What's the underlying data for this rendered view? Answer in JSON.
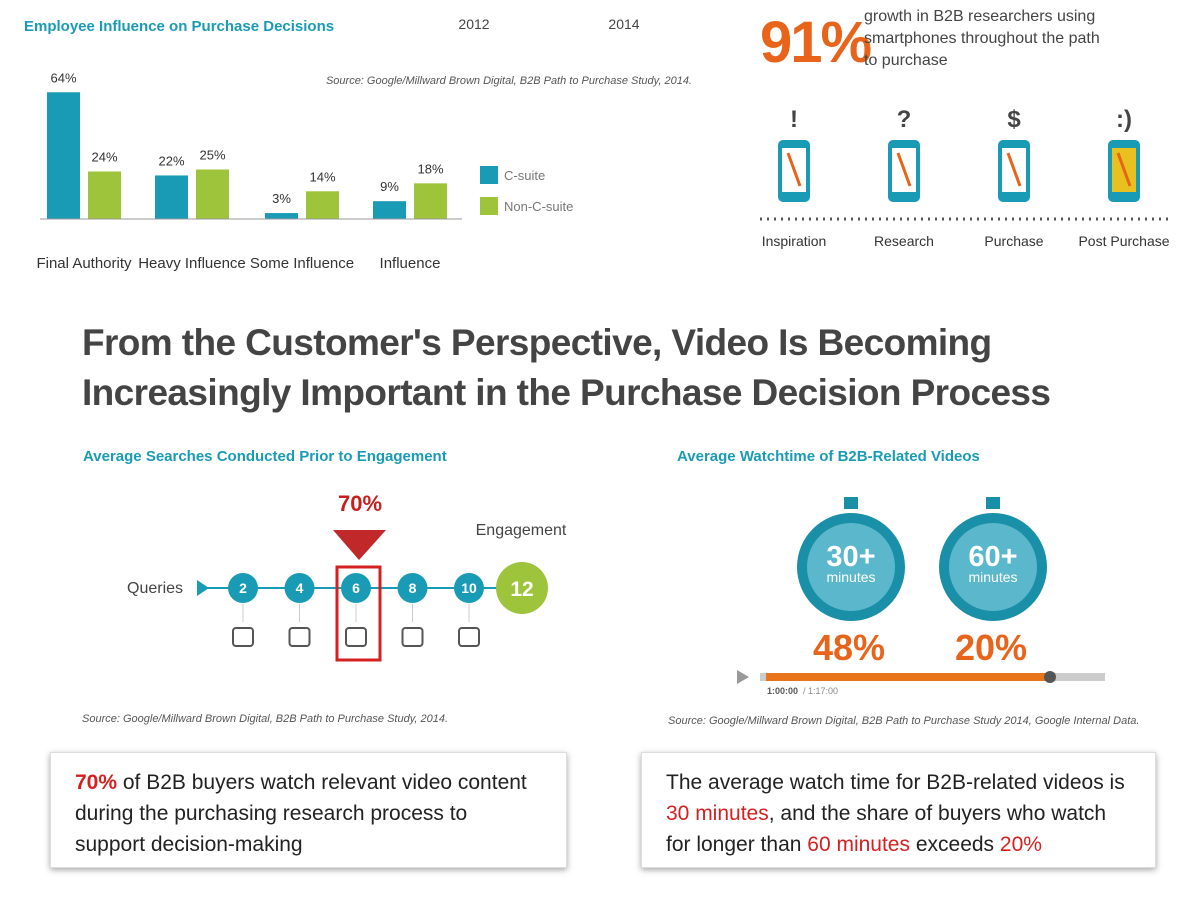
{
  "chart_data": {
    "type": "bar",
    "title": "Employee Influence on Purchase Decisions",
    "annotations": [
      "2012",
      "2014"
    ],
    "source": "Source: Google/Millward Brown Digital, B2B Path to Purchase Study, 2014.",
    "categories": [
      "Final Authority",
      "Heavy Influence",
      "Some Influence",
      "Influence"
    ],
    "series": [
      {
        "name": "C-suite",
        "color": "#1a9bb5",
        "values": [
          64,
          22,
          3,
          9
        ],
        "value_labels": [
          "64%",
          "22%",
          "3%",
          "9%"
        ]
      },
      {
        "name": "Non-C-suite",
        "color": "#9dc43a",
        "values": [
          24,
          25,
          14,
          18
        ],
        "value_labels": [
          "24%",
          "25%",
          "14%",
          "18%"
        ]
      }
    ]
  },
  "smartphone_stat": {
    "value": 91,
    "label": "91%",
    "text": "growth in B2B researchers using smartphones throughout the path to purchase",
    "stages": [
      {
        "symbol": "!",
        "label": "Inspiration"
      },
      {
        "symbol": "?",
        "label": "Research"
      },
      {
        "symbol": "$",
        "label": "Purchase"
      },
      {
        "symbol": ":)",
        "label": "Post Purchase"
      }
    ]
  },
  "headline": "From the Customer's Perspective, Video Is Becoming Increasingly Important in the Purchase Decision Process",
  "searches": {
    "title": "Average Searches Conducted Prior to Engagement",
    "highlight": "70%",
    "start_label": "Queries",
    "steps": [
      2,
      4,
      6,
      8,
      10
    ],
    "end_label": "Engagement",
    "end_value": 12,
    "source": "Source: Google/Millward Brown Digital, B2B Path to Purchase Study, 2014."
  },
  "watchtime": {
    "title": "Average Watchtime of B2B-Related Videos",
    "timers": [
      {
        "value": "30+",
        "unit": "minutes",
        "share": "48%"
      },
      {
        "value": "60+",
        "unit": "minutes",
        "share": "20%"
      }
    ],
    "time": "1:00:00",
    "duration": "/ 1:17:00",
    "source": "Source: Google/Millward Brown Digital, B2B Path to Purchase Study 2014, Google Internal Data."
  },
  "callouts": [
    [
      {
        "text": "70%",
        "highlight": true
      },
      {
        "text": " of B2B buyers watch relevant video content during the purchasing research process to support decision-making",
        "highlight": false
      }
    ],
    [
      {
        "text": "The average watch time for B2B-related videos is ",
        "highlight": false
      },
      {
        "text": "30 minutes",
        "highlight": true
      },
      {
        "text": ", and the share of buyers who watch for longer than ",
        "highlight": false
      },
      {
        "text": "60 minutes",
        "highlight": true
      },
      {
        "text": " exceeds ",
        "highlight": false
      },
      {
        "text": "20%",
        "highlight": true
      }
    ]
  ]
}
